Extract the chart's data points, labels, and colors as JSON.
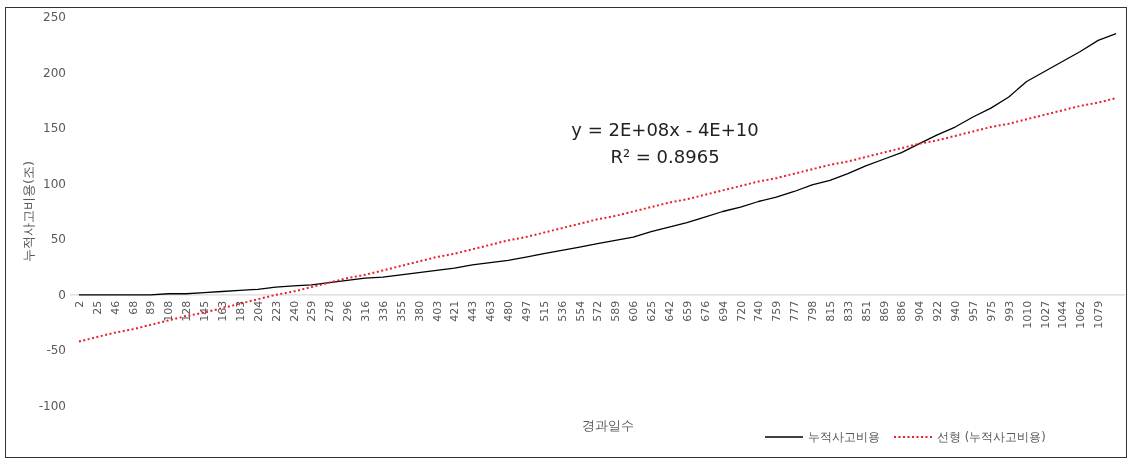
{
  "chart_data": {
    "type": "line",
    "ylabel": "누적사고비용(조)",
    "xlabel": "경과일수",
    "categories": [
      "2",
      "25",
      "46",
      "68",
      "89",
      "108",
      "128",
      "145",
      "163",
      "183",
      "204",
      "223",
      "240",
      "259",
      "278",
      "296",
      "316",
      "336",
      "355",
      "380",
      "403",
      "421",
      "443",
      "463",
      "480",
      "497",
      "515",
      "536",
      "554",
      "572",
      "589",
      "606",
      "625",
      "642",
      "659",
      "676",
      "694",
      "720",
      "740",
      "759",
      "777",
      "798",
      "815",
      "833",
      "851",
      "869",
      "886",
      "904",
      "922",
      "940",
      "957",
      "975",
      "993",
      "1010",
      "1027",
      "1044",
      "1062",
      "1079",
      null
    ],
    "ylim": [
      -100,
      250
    ],
    "yticks": [
      -100,
      -50,
      0,
      50,
      100,
      150,
      200,
      250
    ],
    "series": [
      {
        "name": "누적사고비용",
        "color": "#000000",
        "line_style": "solid",
        "values": [
          0,
          0,
          0,
          0,
          0,
          1,
          1,
          2,
          3,
          4,
          5,
          7,
          8,
          9,
          11,
          13,
          15,
          16,
          18,
          20,
          22,
          24,
          27,
          29,
          31,
          34,
          37,
          40,
          43,
          46,
          49,
          52,
          57,
          61,
          65,
          70,
          75,
          79,
          84,
          88,
          93,
          99,
          103,
          109,
          116,
          122,
          128,
          136,
          144,
          151,
          160,
          168,
          178,
          192,
          201,
          210,
          219,
          229,
          235
        ]
      },
      {
        "name": "선형 (누적사고비용)",
        "color": "#e8202a",
        "line_style": "dotted",
        "values": [
          -42,
          -38,
          -34,
          -31,
          -27,
          -23,
          -19,
          -16,
          -12,
          -8,
          -4,
          0,
          3,
          7,
          11,
          15,
          18,
          22,
          26,
          30,
          34,
          37,
          41,
          45,
          49,
          52,
          56,
          60,
          64,
          68,
          71,
          75,
          79,
          83,
          86,
          90,
          94,
          98,
          102,
          105,
          109,
          113,
          117,
          120,
          124,
          128,
          132,
          136,
          139,
          143,
          147,
          151,
          154,
          158,
          162,
          166,
          170,
          173,
          177
        ]
      }
    ],
    "annotations": [
      "y = 2E+08x - 4E+10",
      "R² = 0.8965"
    ],
    "legend": "bottom right"
  }
}
